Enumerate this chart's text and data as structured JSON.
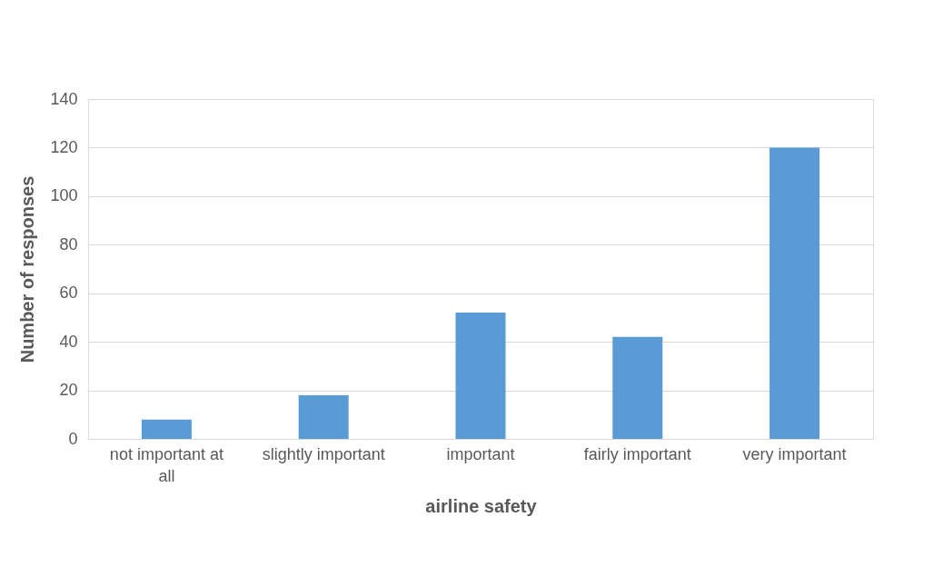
{
  "chart_data": {
    "type": "bar",
    "xlabel": "airline safety",
    "ylabel": "Number of responses",
    "categories": [
      "not important at all",
      "slightly important",
      "important",
      "fairly important",
      "very important"
    ],
    "values": [
      8,
      18,
      52,
      42,
      120
    ],
    "color": "#5b9bd5",
    "ylim": [
      0,
      140
    ],
    "yticks": [
      0,
      20,
      40,
      60,
      80,
      100,
      120,
      140
    ],
    "grid": "y"
  }
}
